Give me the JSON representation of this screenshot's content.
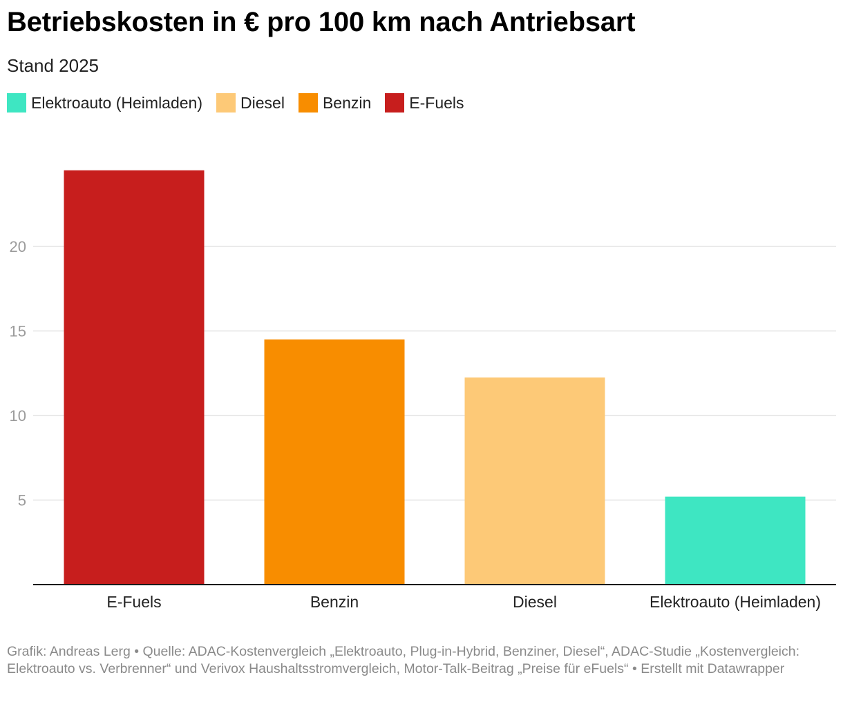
{
  "header": {
    "title": "Betriebskosten in € pro 100 km nach Antriebsart",
    "subtitle": "Stand 2025"
  },
  "legend": [
    {
      "label": "Elektroauto (Heimladen)",
      "color": "#3ee6c2"
    },
    {
      "label": "Diesel",
      "color": "#fdc977"
    },
    {
      "label": "Benzin",
      "color": "#f88d00"
    },
    {
      "label": "E-Fuels",
      "color": "#c71e1d"
    }
  ],
  "chart_data": {
    "type": "bar",
    "title": "Betriebskosten in € pro 100 km nach Antriebsart",
    "subtitle": "Stand 2025",
    "xlabel": "",
    "ylabel": "",
    "categories": [
      "E-Fuels",
      "Benzin",
      "Diesel",
      "Elektroauto (Heimladen)"
    ],
    "values": [
      24.5,
      14.5,
      12.25,
      5.2
    ],
    "colors": [
      "#c71e1d",
      "#f88d00",
      "#fdc977",
      "#3ee6c2"
    ],
    "yticks": [
      "5",
      "10",
      "15",
      "20"
    ],
    "ylim": [
      0,
      25
    ],
    "grid": true,
    "legend_position": "top-left"
  },
  "footer": {
    "text": "Grafik: Andreas Lerg • Quelle: ADAC-Kostenvergleich „Elektroauto, Plug-in-Hybrid, Benziner, Diesel“, ADAC-Studie „Kostenvergleich: Elektroauto vs. Verbrenner“ und Verivox Haushaltsstromvergleich, Motor-Talk-Beitrag „Preise für eFuels“ • Erstellt mit Datawrapper"
  }
}
